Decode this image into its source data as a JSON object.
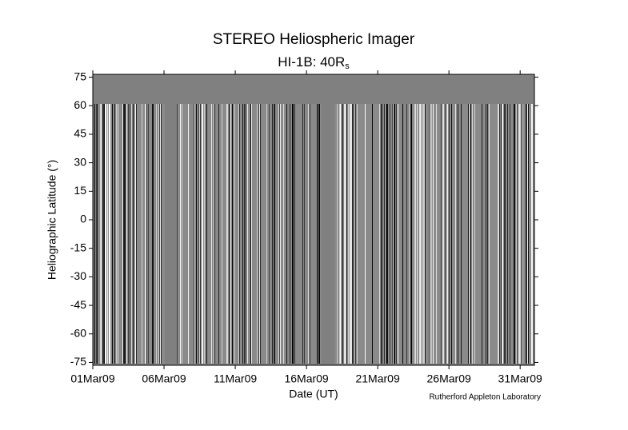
{
  "chart_data": {
    "type": "image",
    "title": "STEREO Heliospheric Imager",
    "subtitle": "HI-1B: 40R",
    "subtitle_subscript": "s",
    "xlabel": "Date (UT)",
    "ylabel": "Heliographic Latitude (°)",
    "credit": "Rutherford Appleton Laboratory",
    "xlim": [
      1,
      32
    ],
    "xticks": [
      {
        "value": 1,
        "label": "01Mar09"
      },
      {
        "value": 6,
        "label": "06Mar09"
      },
      {
        "value": 11,
        "label": "11Mar09"
      },
      {
        "value": 16,
        "label": "16Mar09"
      },
      {
        "value": 21,
        "label": "21Mar09"
      },
      {
        "value": 26,
        "label": "26Mar09"
      },
      {
        "value": 31,
        "label": "31Mar09"
      }
    ],
    "ylim": [
      -76.5,
      76.5
    ],
    "yticks": [
      75,
      60,
      45,
      30,
      15,
      0,
      -15,
      -30,
      -45,
      -60,
      -75
    ]
  }
}
